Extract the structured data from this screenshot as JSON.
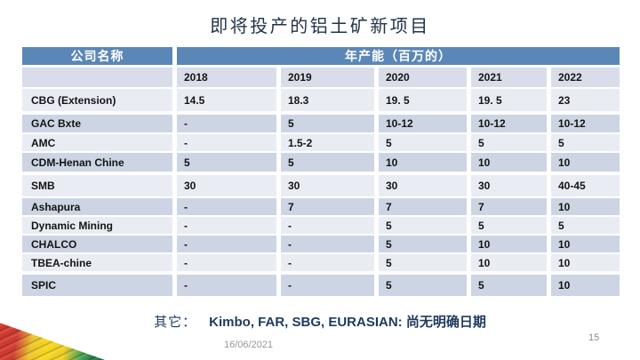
{
  "slide": {
    "title": "即将投产的铝土矿新项目",
    "footer": {
      "others_label": "其它：",
      "others_text": "Kimbo, FAR, SBG, EURASIAN: 尚无明确日期",
      "date": "16/06/2021",
      "page_number": "15"
    }
  },
  "table": {
    "header": {
      "company": "公司名称",
      "capacity": "年产能（百万的）"
    },
    "years": [
      "2018",
      "2019",
      "2020",
      "2021",
      "2022"
    ],
    "rows": [
      {
        "name": "CBG (Extension)",
        "values": [
          "14.5",
          "18.3",
          "19. 5",
          "19. 5",
          "23"
        ]
      },
      {
        "name": "GAC Bxte",
        "values": [
          "-",
          "5",
          "10-12",
          "10-12",
          "10-12"
        ]
      },
      {
        "name": "AMC",
        "values": [
          "-",
          "1.5-2",
          "5",
          "5",
          "5"
        ]
      },
      {
        "name": "CDM-Henan Chine",
        "values": [
          "5",
          "5",
          "10",
          "10",
          "10"
        ]
      },
      {
        "name": "SMB",
        "values": [
          "30",
          "30",
          "30",
          "30",
          "40-45"
        ]
      },
      {
        "name": "Ashapura",
        "values": [
          "-",
          "7",
          "7",
          "7",
          "10"
        ]
      },
      {
        "name": "Dynamic Mining",
        "values": [
          "-",
          "-",
          "5",
          "5",
          "5"
        ]
      },
      {
        "name": "CHALCO",
        "values": [
          "-",
          "-",
          "5",
          "10",
          "10"
        ]
      },
      {
        "name": "TBEA-chine",
        "values": [
          "-",
          "-",
          "5",
          "10",
          "10"
        ]
      },
      {
        "name": "SPIC",
        "values": [
          "-",
          "-",
          "5",
          "5",
          "10"
        ]
      }
    ]
  },
  "colors": {
    "header_blue": "#5b87b7",
    "year_row": "#d8dde9",
    "row_light": "#e9ecf3",
    "row_dark": "#cdd4e3",
    "title_text": "#22344a",
    "footer_text": "#1e3a5f",
    "muted_text": "#979797",
    "flag_red": "#d2372e",
    "flag_yellow": "#f6d71d",
    "flag_green": "#156c38"
  }
}
